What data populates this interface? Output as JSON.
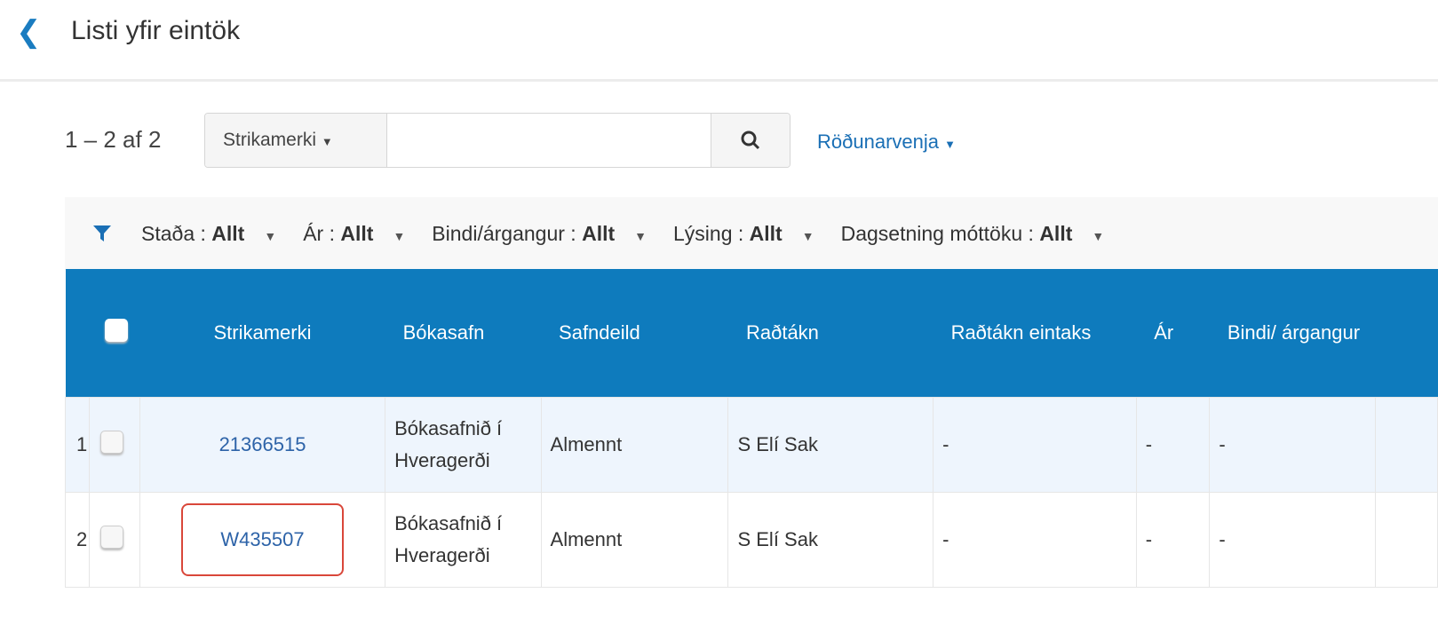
{
  "header": {
    "title": "Listi yfir eintök",
    "back_icon": "chevron-left-icon"
  },
  "toolbar": {
    "count": "1 – 2 af 2",
    "search_scope": "Strikamerki",
    "search_value": "",
    "search_placeholder": "",
    "sort_label": "Röðunarvenja"
  },
  "filters": [
    {
      "label": "Staða :",
      "value": "Allt"
    },
    {
      "label": "Ár :",
      "value": "Allt"
    },
    {
      "label": "Bindi/árgangur :",
      "value": "Allt"
    },
    {
      "label": "Lýsing :",
      "value": "Allt"
    },
    {
      "label": "Dagsetning móttöku :",
      "value": "Allt"
    }
  ],
  "table": {
    "columns": [
      "Strikamerki",
      "Bókasafn",
      "Safndeild",
      "Raðtákn",
      "Raðtákn eintaks",
      "Ár",
      "Bindi/ árgangur"
    ],
    "rows": [
      {
        "num": "1",
        "barcode": "21366515",
        "library": "Bókasafnið í Hveragerði",
        "location": "Almennt",
        "call_number": "S Elí Sak",
        "item_call_number": "-",
        "year": "-",
        "volume": "-"
      },
      {
        "num": "2",
        "barcode": "W435507",
        "library": "Bókasafnið í Hveragerði",
        "location": "Almennt",
        "call_number": "S Elí Sak",
        "item_call_number": "-",
        "year": "-",
        "volume": "-"
      }
    ]
  },
  "colors": {
    "accent": "#0e7bbd",
    "link": "#2d63a8",
    "highlight": "#d9473a"
  }
}
